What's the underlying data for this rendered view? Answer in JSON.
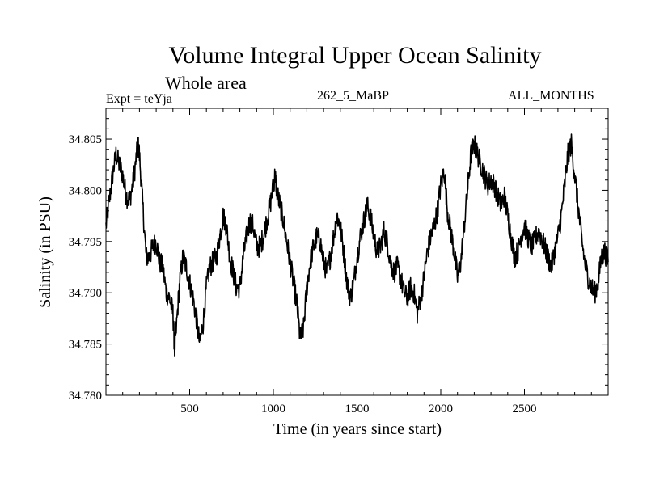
{
  "chart_data": {
    "type": "line",
    "title": "Volume Integral Upper Ocean Salinity",
    "subtitle": "Whole area",
    "annotations": {
      "left": "Expt = teYja",
      "center": "262_5_MaBP",
      "right": "ALL_MONTHS"
    },
    "xlabel": "Time (in years since start)",
    "ylabel": "Salinity (in PSU)",
    "xlim": [
      0,
      3000
    ],
    "ylim": [
      34.78,
      34.808
    ],
    "xticks": [
      500,
      1000,
      1500,
      2000,
      2500
    ],
    "xtick_labels": [
      "500",
      "1000",
      "1500",
      "2000",
      "2500"
    ],
    "yticks": [
      34.78,
      34.785,
      34.79,
      34.795,
      34.8,
      34.805
    ],
    "ytick_labels": [
      "34.780",
      "34.785",
      "34.790",
      "34.795",
      "34.800",
      "34.805"
    ],
    "grid": false,
    "series": [
      {
        "name": "Salinity",
        "points": [
          [
            0,
            34.7965
          ],
          [
            20,
            34.799
          ],
          [
            40,
            34.8015
          ],
          [
            60,
            34.8035
          ],
          [
            80,
            34.8025
          ],
          [
            100,
            34.8015
          ],
          [
            120,
            34.7995
          ],
          [
            140,
            34.799
          ],
          [
            160,
            34.8005
          ],
          [
            180,
            34.803
          ],
          [
            190,
            34.8045
          ],
          [
            200,
            34.8035
          ],
          [
            220,
            34.7985
          ],
          [
            240,
            34.7935
          ],
          [
            260,
            34.7935
          ],
          [
            280,
            34.7945
          ],
          [
            300,
            34.795
          ],
          [
            320,
            34.793
          ],
          [
            340,
            34.7925
          ],
          [
            360,
            34.79
          ],
          [
            380,
            34.7895
          ],
          [
            400,
            34.788
          ],
          [
            410,
            34.7845
          ],
          [
            420,
            34.7865
          ],
          [
            440,
            34.791
          ],
          [
            460,
            34.7935
          ],
          [
            480,
            34.7925
          ],
          [
            500,
            34.791
          ],
          [
            520,
            34.7895
          ],
          [
            540,
            34.7875
          ],
          [
            560,
            34.785
          ],
          [
            580,
            34.787
          ],
          [
            600,
            34.7905
          ],
          [
            620,
            34.7925
          ],
          [
            640,
            34.793
          ],
          [
            660,
            34.7935
          ],
          [
            680,
            34.7955
          ],
          [
            700,
            34.7975
          ],
          [
            720,
            34.7965
          ],
          [
            740,
            34.7935
          ],
          [
            760,
            34.792
          ],
          [
            780,
            34.7905
          ],
          [
            800,
            34.7905
          ],
          [
            820,
            34.7935
          ],
          [
            840,
            34.7955
          ],
          [
            860,
            34.797
          ],
          [
            880,
            34.7965
          ],
          [
            900,
            34.7945
          ],
          [
            920,
            34.7945
          ],
          [
            940,
            34.7955
          ],
          [
            960,
            34.797
          ],
          [
            980,
            34.7985
          ],
          [
            1000,
            34.8005
          ],
          [
            1010,
            34.8015
          ],
          [
            1020,
            34.8
          ],
          [
            1040,
            34.7985
          ],
          [
            1060,
            34.797
          ],
          [
            1080,
            34.795
          ],
          [
            1100,
            34.793
          ],
          [
            1120,
            34.791
          ],
          [
            1140,
            34.789
          ],
          [
            1160,
            34.7855
          ],
          [
            1180,
            34.7865
          ],
          [
            1200,
            34.7905
          ],
          [
            1220,
            34.793
          ],
          [
            1240,
            34.7945
          ],
          [
            1260,
            34.7955
          ],
          [
            1280,
            34.795
          ],
          [
            1300,
            34.793
          ],
          [
            1320,
            34.792
          ],
          [
            1340,
            34.7935
          ],
          [
            1360,
            34.7955
          ],
          [
            1380,
            34.7975
          ],
          [
            1400,
            34.7965
          ],
          [
            1420,
            34.794
          ],
          [
            1440,
            34.791
          ],
          [
            1460,
            34.7895
          ],
          [
            1480,
            34.791
          ],
          [
            1500,
            34.7935
          ],
          [
            1520,
            34.7955
          ],
          [
            1540,
            34.797
          ],
          [
            1560,
            34.7985
          ],
          [
            1580,
            34.7975
          ],
          [
            1600,
            34.7955
          ],
          [
            1620,
            34.794
          ],
          [
            1640,
            34.7945
          ],
          [
            1660,
            34.796
          ],
          [
            1680,
            34.795
          ],
          [
            1700,
            34.793
          ],
          [
            1720,
            34.792
          ],
          [
            1740,
            34.7925
          ],
          [
            1760,
            34.7915
          ],
          [
            1780,
            34.79
          ],
          [
            1800,
            34.7895
          ],
          [
            1820,
            34.7905
          ],
          [
            1840,
            34.79
          ],
          [
            1860,
            34.788
          ],
          [
            1880,
            34.7895
          ],
          [
            1900,
            34.7915
          ],
          [
            1920,
            34.794
          ],
          [
            1940,
            34.7955
          ],
          [
            1960,
            34.7965
          ],
          [
            1980,
            34.798
          ],
          [
            2000,
            34.8005
          ],
          [
            2020,
            34.802
          ],
          [
            2040,
            34.798
          ],
          [
            2060,
            34.796
          ],
          [
            2080,
            34.794
          ],
          [
            2100,
            34.7915
          ],
          [
            2120,
            34.793
          ],
          [
            2140,
            34.7965
          ],
          [
            2160,
            34.8
          ],
          [
            2180,
            34.8035
          ],
          [
            2200,
            34.8045
          ],
          [
            2220,
            34.8035
          ],
          [
            2240,
            34.8025
          ],
          [
            2260,
            34.8015
          ],
          [
            2280,
            34.8005
          ],
          [
            2300,
            34.801
          ],
          [
            2320,
            34.8005
          ],
          [
            2340,
            34.7995
          ],
          [
            2360,
            34.7985
          ],
          [
            2380,
            34.7995
          ],
          [
            2400,
            34.7975
          ],
          [
            2420,
            34.7955
          ],
          [
            2440,
            34.7935
          ],
          [
            2460,
            34.794
          ],
          [
            2480,
            34.7955
          ],
          [
            2500,
            34.7965
          ],
          [
            2520,
            34.7955
          ],
          [
            2540,
            34.7945
          ],
          [
            2560,
            34.795
          ],
          [
            2580,
            34.796
          ],
          [
            2600,
            34.7955
          ],
          [
            2620,
            34.7945
          ],
          [
            2640,
            34.7935
          ],
          [
            2660,
            34.7925
          ],
          [
            2680,
            34.794
          ],
          [
            2700,
            34.7955
          ],
          [
            2720,
            34.7975
          ],
          [
            2740,
            34.8005
          ],
          [
            2760,
            34.8035
          ],
          [
            2780,
            34.8045
          ],
          [
            2800,
            34.8015
          ],
          [
            2820,
            34.7985
          ],
          [
            2840,
            34.7955
          ],
          [
            2860,
            34.793
          ],
          [
            2880,
            34.7915
          ],
          [
            2900,
            34.7905
          ],
          [
            2920,
            34.79
          ],
          [
            2940,
            34.791
          ],
          [
            2960,
            34.7935
          ],
          [
            2980,
            34.794
          ],
          [
            3000,
            34.793
          ]
        ]
      }
    ]
  }
}
